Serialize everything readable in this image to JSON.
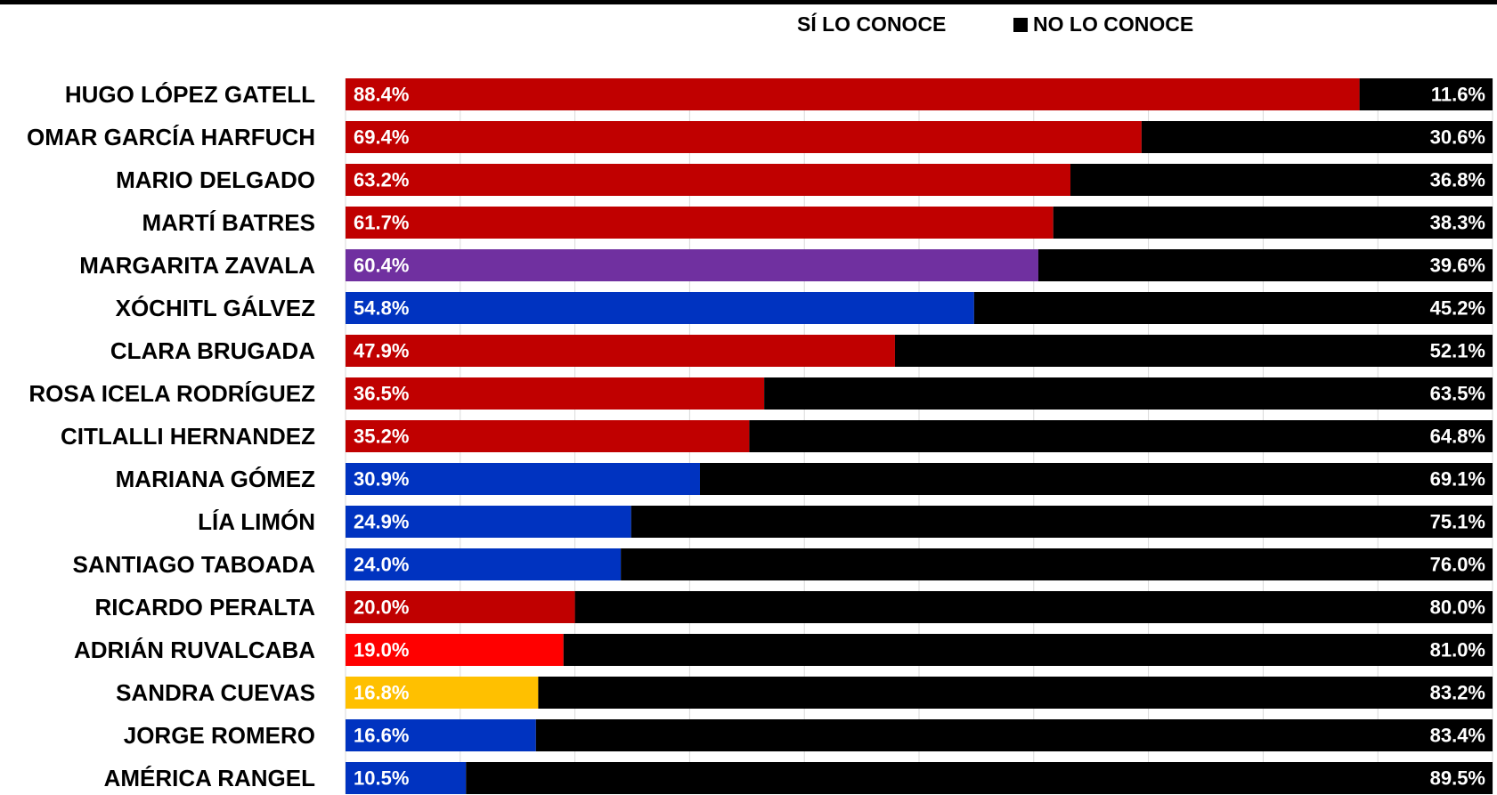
{
  "legend": {
    "si_label": "SÍ LO CONOCE",
    "no_label": "NO LO CONOCE",
    "no_color": "#000000"
  },
  "chart_data": {
    "type": "bar",
    "orientation": "horizontal",
    "stacked": true,
    "xlim": [
      0,
      100
    ],
    "grid": true,
    "legend_position": "top-right",
    "categories": [
      "HUGO LÓPEZ GATELL",
      "OMAR GARCÍA HARFUCH",
      "MARIO DELGADO",
      "MARTÍ BATRES",
      "MARGARITA ZAVALA",
      "XÓCHITL GÁLVEZ",
      "CLARA BRUGADA",
      "ROSA ICELA RODRÍGUEZ",
      "CITLALLI HERNANDEZ",
      "MARIANA GÓMEZ",
      "LÍA LIMÓN",
      "SANTIAGO TABOADA",
      "RICARDO PERALTA",
      "ADRIÁN RUVALCABA",
      "SANDRA CUEVAS",
      "JORGE ROMERO",
      "AMÉRICA RANGEL"
    ],
    "series": [
      {
        "name": "SÍ LO CONOCE",
        "values": [
          88.4,
          69.4,
          63.2,
          61.7,
          60.4,
          54.8,
          47.9,
          36.5,
          35.2,
          30.9,
          24.9,
          24.0,
          20.0,
          19.0,
          16.8,
          16.6,
          10.5
        ],
        "labels": [
          "88.4%",
          "69.4%",
          "63.2%",
          "61.7%",
          "60.4%",
          "54.8%",
          "47.9%",
          "36.5%",
          "35.2%",
          "30.9%",
          "24.9%",
          "24.0%",
          "20.0%",
          "19.0%",
          "16.8%",
          "16.6%",
          "10.5%"
        ],
        "colors": [
          "#C00000",
          "#C00000",
          "#C00000",
          "#C00000",
          "#7030A0",
          "#0033C0",
          "#C00000",
          "#C00000",
          "#C00000",
          "#0033C0",
          "#0033C0",
          "#0033C0",
          "#C00000",
          "#FF0000",
          "#FFC000",
          "#0033C0",
          "#0033C0"
        ]
      },
      {
        "name": "NO LO CONOCE",
        "values": [
          11.6,
          30.6,
          36.8,
          38.3,
          39.6,
          45.2,
          52.1,
          63.5,
          64.8,
          69.1,
          75.1,
          76.0,
          80.0,
          81.0,
          83.2,
          83.4,
          89.5
        ],
        "labels": [
          "11.6%",
          "30.6%",
          "36.8%",
          "38.3%",
          "39.6%",
          "45.2%",
          "52.1%",
          "63.5%",
          "64.8%",
          "69.1%",
          "75.1%",
          "76.0%",
          "80.0%",
          "81.0%",
          "83.2%",
          "83.4%",
          "89.5%"
        ],
        "color": "#000000"
      }
    ]
  }
}
